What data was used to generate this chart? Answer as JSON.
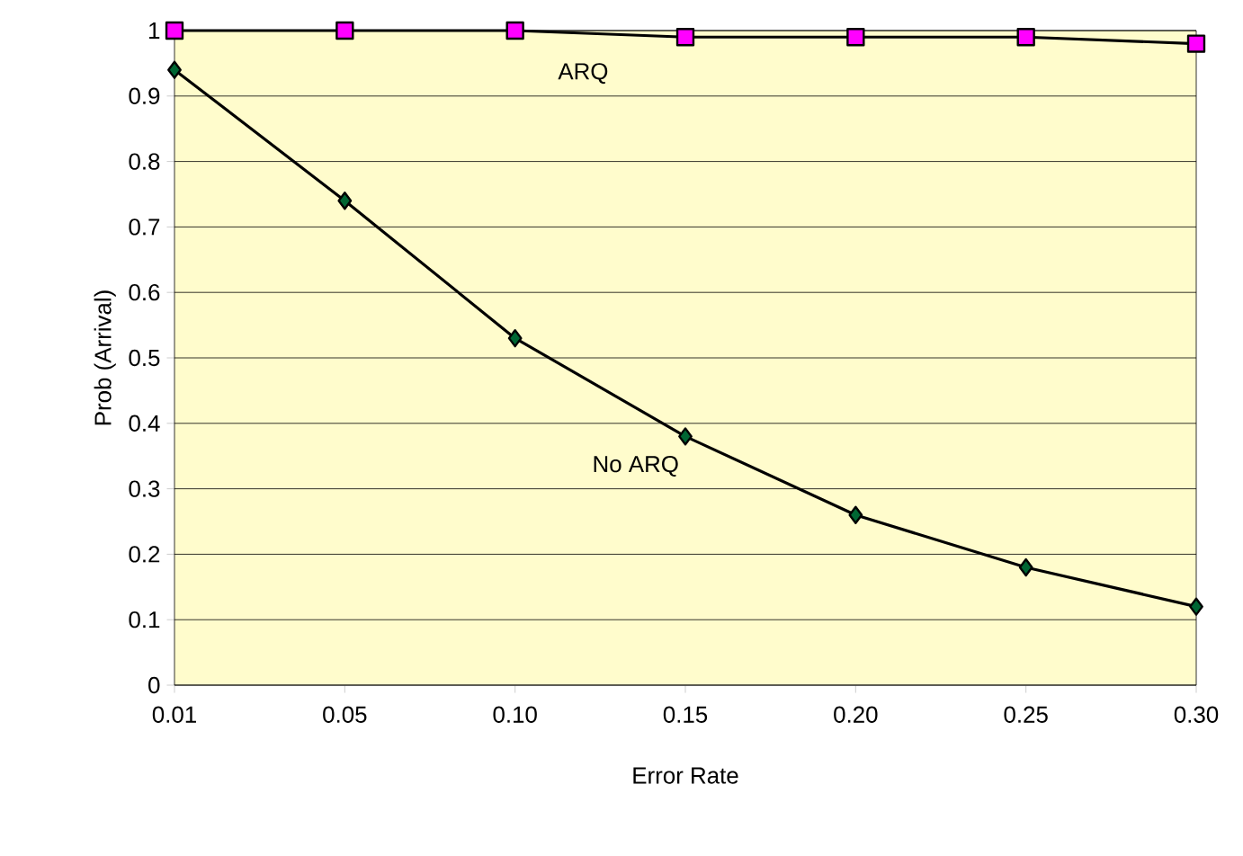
{
  "chart_data": {
    "type": "line",
    "xlabel": "Error Rate",
    "ylabel": "Prob (Arrival)",
    "categories": [
      "0.01",
      "0.05",
      "0.10",
      "0.15",
      "0.20",
      "0.25",
      "0.30"
    ],
    "series": [
      {
        "name": "ARQ",
        "color": "#ff00ff",
        "marker": "square",
        "values": [
          1.0,
          1.0,
          1.0,
          0.99,
          0.99,
          0.99,
          0.98
        ]
      },
      {
        "name": "No ARQ",
        "color": "#006633",
        "marker": "diamond",
        "values": [
          0.94,
          0.74,
          0.53,
          0.38,
          0.26,
          0.18,
          0.12
        ]
      }
    ],
    "ylim": [
      0,
      1
    ],
    "yticks": [
      0,
      0.1,
      0.2,
      0.3,
      0.4,
      0.5,
      0.6,
      0.7,
      0.8,
      0.9,
      1
    ],
    "grid": "y",
    "line_style": "solid"
  }
}
